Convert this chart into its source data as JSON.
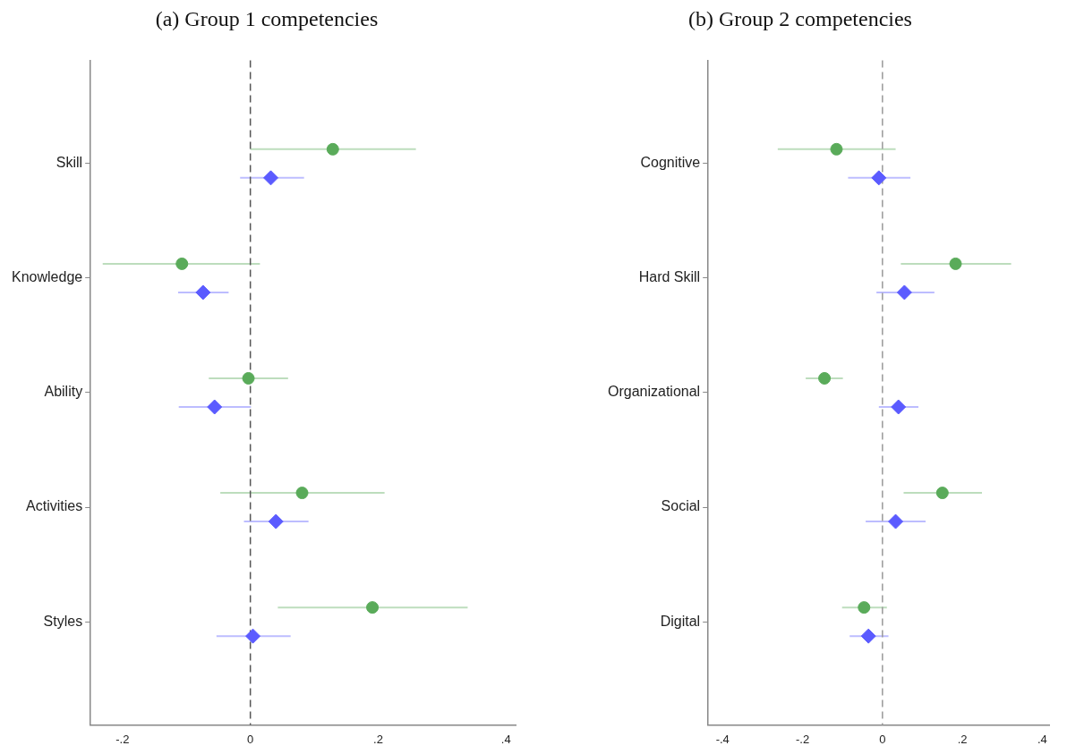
{
  "chart_data": [
    {
      "type": "scatter",
      "title": "(a) Group 1 competencies",
      "orientation": "horizontal",
      "categories": [
        "Skill",
        "Knowledge",
        "Ability",
        "Activities",
        "Styles"
      ],
      "xlim": [
        -0.25,
        0.415
      ],
      "xticks": [
        {
          "value": -0.2,
          "label": "-.2"
        },
        {
          "value": 0,
          "label": "0"
        },
        {
          "value": 0.2,
          "label": ".2"
        },
        {
          "value": 0.4,
          "label": ".4"
        }
      ],
      "grid": false,
      "legend": false,
      "ref_lines": [
        {
          "axis": "x",
          "value": 0,
          "line_style": "dashed",
          "color": "#555555"
        }
      ],
      "series": [
        {
          "color": "#5aab5a",
          "marker": "circle",
          "values": [
            0.129,
            -0.107,
            -0.003,
            0.081,
            0.191
          ],
          "errors": [
            [
              0.0,
              0.259
            ],
            [
              -0.231,
              0.015
            ],
            [
              -0.065,
              0.059
            ],
            [
              -0.047,
              0.21
            ],
            [
              0.043,
              0.34
            ]
          ]
        },
        {
          "color": "#5b5bff",
          "marker": "diamond",
          "values": [
            0.032,
            -0.074,
            -0.056,
            0.04,
            0.004
          ],
          "errors": [
            [
              -0.016,
              0.084
            ],
            [
              -0.113,
              -0.034
            ],
            [
              -0.112,
              0.001
            ],
            [
              -0.01,
              0.091
            ],
            [
              -0.053,
              0.063
            ]
          ]
        }
      ]
    },
    {
      "type": "scatter",
      "title": "(b) Group 2 competencies",
      "orientation": "horizontal",
      "categories": [
        "Cognitive",
        "Hard Skill",
        "Organizational",
        "Social",
        "Digital"
      ],
      "xlim": [
        -0.436,
        0.417
      ],
      "xticks": [
        {
          "value": -0.4,
          "label": "-.4"
        },
        {
          "value": -0.2,
          "label": "-.2"
        },
        {
          "value": 0,
          "label": "0"
        },
        {
          "value": 0.2,
          "label": ".2"
        },
        {
          "value": 0.4,
          "label": ".4"
        }
      ],
      "grid": false,
      "legend": false,
      "ref_lines": [
        {
          "axis": "x",
          "value": 0,
          "line_style": "dashed",
          "color": "#999999"
        }
      ],
      "series": [
        {
          "color": "#5aab5a",
          "marker": "circle",
          "values": [
            -0.115,
            0.183,
            -0.145,
            0.15,
            -0.046
          ],
          "errors": [
            [
              -0.262,
              0.033
            ],
            [
              0.046,
              0.322
            ],
            [
              -0.192,
              -0.099
            ],
            [
              0.053,
              0.249
            ],
            [
              -0.101,
              0.011
            ]
          ]
        },
        {
          "color": "#5b5bff",
          "marker": "diamond",
          "values": [
            -0.009,
            0.055,
            0.04,
            0.033,
            -0.035
          ],
          "errors": [
            [
              -0.086,
              0.07
            ],
            [
              -0.015,
              0.13
            ],
            [
              -0.009,
              0.09
            ],
            [
              -0.042,
              0.108
            ],
            [
              -0.082,
              0.015
            ]
          ]
        }
      ]
    }
  ]
}
